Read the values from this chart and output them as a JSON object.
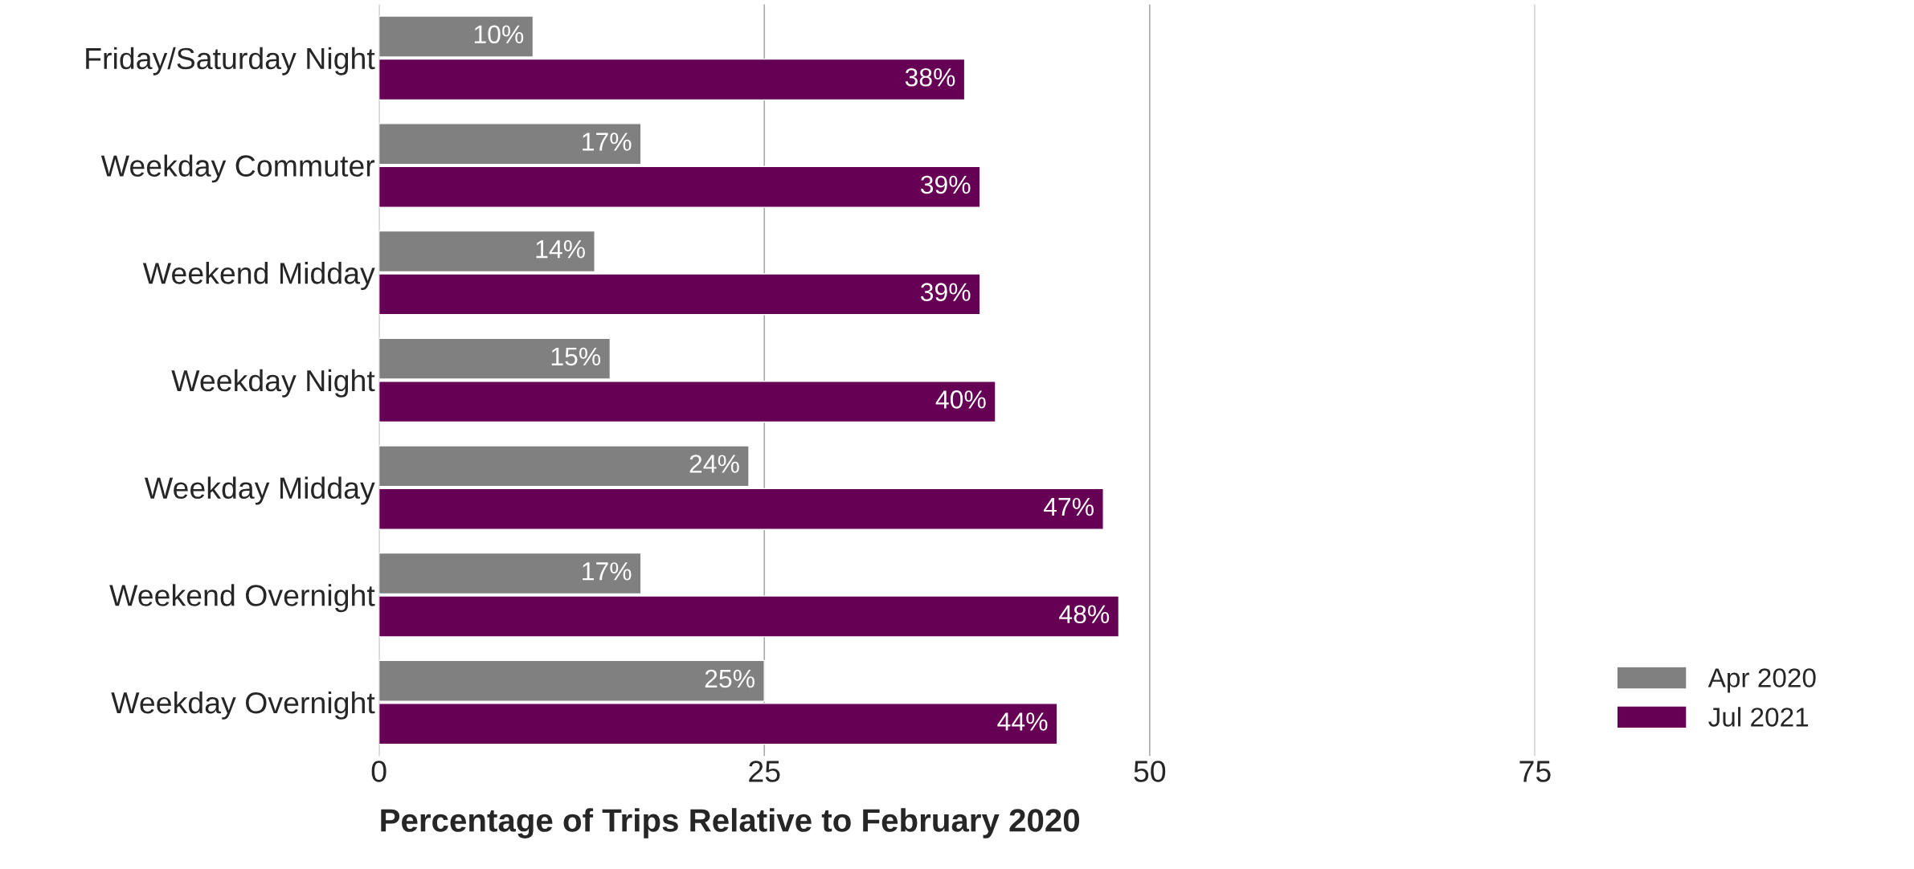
{
  "chart_data": {
    "type": "bar",
    "orientation": "horizontal",
    "xlabel": "Percentage of Trips Relative to February 2020",
    "categories": [
      "Friday/Saturday Night",
      "Weekday Commuter",
      "Weekend Midday",
      "Weekday Night",
      "Weekday Midday",
      "Weekend Overnight",
      "Weekday Overnight"
    ],
    "series": [
      {
        "name": "Apr 2020",
        "color": "#808080",
        "values": [
          10,
          17,
          14,
          15,
          24,
          17,
          25
        ],
        "value_labels": [
          "10%",
          "17%",
          "14%",
          "15%",
          "24%",
          "17%",
          "25%"
        ]
      },
      {
        "name": "Jul 2021",
        "color": "#660055",
        "values": [
          38,
          39,
          39,
          40,
          47,
          48,
          44
        ],
        "value_labels": [
          "38%",
          "39%",
          "39%",
          "40%",
          "47%",
          "48%",
          "44%"
        ]
      }
    ],
    "xlim": [
      0,
      75
    ],
    "xticks": [
      0,
      25,
      50,
      75
    ],
    "grid": "x",
    "legend": "bottom right"
  }
}
